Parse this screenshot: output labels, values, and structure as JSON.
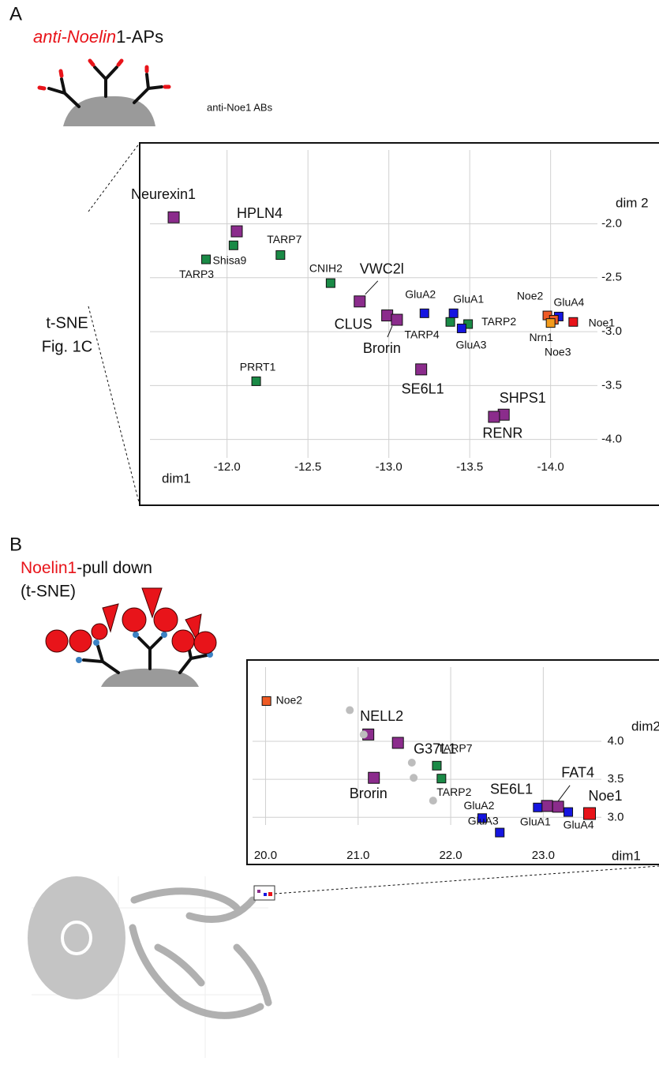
{
  "figure": {
    "panel_a": {
      "letter": "A",
      "title_red": "anti-Noelin",
      "title_rest": "1-APs",
      "antibody_label": "anti-Noe1 ABs",
      "side_label_1": "t-SNE",
      "side_label_2": "Fig. 1C"
    },
    "panel_b": {
      "letter": "B",
      "title_red": "Noelin1",
      "title_rest": "-pull down",
      "subtitle": "(t-SNE)"
    }
  },
  "chart_data": [
    {
      "type": "scatter",
      "xlabel": "dim1",
      "ylabel": "dim 2",
      "grid": true,
      "xlim": [
        -11.46,
        -14.67
      ],
      "ylim": [
        -4.61,
        -1.25
      ],
      "xticks": [
        {
          "value": -12,
          "label": "-12.0"
        },
        {
          "value": -12.5,
          "label": "-12.5"
        },
        {
          "value": -13,
          "label": "-13.0"
        },
        {
          "value": -13.5,
          "label": "-13.5"
        },
        {
          "value": -14,
          "label": "-14.0"
        }
      ],
      "yticks": [
        {
          "value": -2,
          "label": "-2.0"
        },
        {
          "value": -2.5,
          "label": "-2.5"
        },
        {
          "value": -3,
          "label": "-3.0"
        },
        {
          "value": -3.5,
          "label": "-3.5"
        },
        {
          "value": -4,
          "label": "-4.0"
        }
      ],
      "series": [
        {
          "color": "#8b2c8c",
          "marker": "square",
          "labels": [
            "Neurexin1",
            "HPLN4",
            "VWC2l",
            "CLUS",
            "Brorin",
            "SE6L1",
            "SHPS1",
            "RENR"
          ],
          "x": [
            -11.67,
            -12.06,
            -12.82,
            -12.99,
            -13.05,
            -13.2,
            -13.71,
            -13.65
          ],
          "values": [
            -1.94,
            -2.07,
            -2.72,
            -2.85,
            -2.89,
            -3.35,
            -3.77,
            -3.79
          ]
        },
        {
          "color": "#1a8a46",
          "marker": "square",
          "labels": [
            "Shisa9",
            "TARP7",
            "TARP3",
            "CNIH2",
            "TARP4",
            "TARP2",
            "PRRT1"
          ],
          "x": [
            -12.04,
            -12.33,
            -11.87,
            -12.64,
            -13.38,
            -13.49,
            -12.18
          ],
          "values": [
            -2.2,
            -2.29,
            -2.33,
            -2.55,
            -2.91,
            -2.93,
            -3.46
          ]
        },
        {
          "color": "#1515e0",
          "marker": "square",
          "labels": [
            "GluA2",
            "GluA1",
            "GluA3",
            "GluA4"
          ],
          "x": [
            -13.22,
            -13.4,
            -13.45,
            -14.05
          ],
          "values": [
            -2.83,
            -2.83,
            -2.97,
            -2.86
          ]
        },
        {
          "color": "#ef5b25",
          "marker": "square",
          "labels": [
            "Noe2",
            "Noe3"
          ],
          "x": [
            -13.98,
            -14.02
          ],
          "values": [
            -2.85,
            -2.89
          ]
        },
        {
          "color": "#f39c1c",
          "marker": "square",
          "labels": [
            "Nrn1"
          ],
          "x": [
            -14.0
          ],
          "values": [
            -2.92
          ]
        },
        {
          "color": "#e8141a",
          "marker": "square",
          "labels": [
            "Noe1"
          ],
          "x": [
            -14.14
          ],
          "values": [
            -2.91
          ]
        }
      ]
    },
    {
      "type": "scatter",
      "xlabel": "dim1",
      "ylabel": "dim2",
      "grid": true,
      "xlim": [
        19.8,
        24.25
      ],
      "ylim": [
        2.38,
        5.07
      ],
      "xticks": [
        {
          "value": 20,
          "label": "20.0"
        },
        {
          "value": 21,
          "label": "21.0"
        },
        {
          "value": 22,
          "label": "22.0"
        },
        {
          "value": 23,
          "label": "23.0"
        }
      ],
      "yticks": [
        {
          "value": 4,
          "label": "4.0"
        },
        3.5,
        {
          "value": 3,
          "label": "3.0"
        }
      ],
      "series": [
        {
          "color": "#8b2c8c",
          "marker": "square",
          "labels": [
            "NELL2",
            "G37L1",
            "Brorin",
            "SE6L1",
            "FAT4"
          ],
          "x": [
            21.11,
            21.43,
            21.17,
            23.04,
            23.16
          ],
          "values": [
            4.09,
            3.98,
            3.52,
            3.15,
            3.14
          ]
        },
        {
          "color": "#1a8a46",
          "marker": "square",
          "labels": [
            "TARP7",
            "TARP2"
          ],
          "x": [
            21.85,
            21.9
          ],
          "values": [
            3.68,
            3.51
          ]
        },
        {
          "color": "#1515e0",
          "marker": "square",
          "labels": [
            "GluA2",
            "GluA3",
            "GluA1",
            "GluA4"
          ],
          "x": [
            22.34,
            22.53,
            22.94,
            23.27
          ],
          "values": [
            2.99,
            2.8,
            3.13,
            3.07
          ]
        },
        {
          "color": "#ef5b25",
          "marker": "square",
          "labels": [
            "Noe2"
          ],
          "x": [
            20.01
          ],
          "values": [
            4.53
          ]
        },
        {
          "color": "#e8141a",
          "marker": "square",
          "labels": [
            "Noe1"
          ],
          "x": [
            23.5
          ],
          "values": [
            3.05
          ]
        },
        {
          "color": "#bdbdbd",
          "marker": "circle",
          "x": [
            20.91,
            21.06,
            21.58,
            21.6,
            21.81
          ],
          "values": [
            4.41,
            4.09,
            3.72,
            3.52,
            3.22
          ]
        }
      ]
    }
  ]
}
